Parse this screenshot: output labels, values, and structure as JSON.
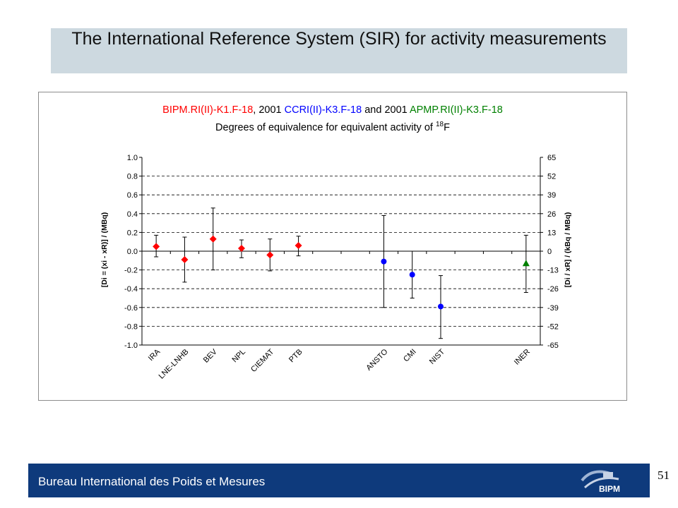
{
  "slide": {
    "title": "The International Reference System (SIR) for activity measurements",
    "footer": "Bureau International des Poids et Mesures",
    "logo_text": "BIPM",
    "page_number": "51"
  },
  "colors": {
    "bipm": "#ff0000",
    "ccri": "#0000ff",
    "apmp": "#008000",
    "footer_bg": "#0e3a7c",
    "title_bg": "#cdd9e0"
  },
  "chart_data": {
    "type": "scatter",
    "title_parts": [
      {
        "text": "BIPM.RI(II)-K1.F-18",
        "color": "#ff0000"
      },
      {
        "text": ", 2001 ",
        "color": "#000000"
      },
      {
        "text": "CCRI(II)-K3.F-18",
        "color": "#0000ff"
      },
      {
        "text": " and 2001 ",
        "color": "#000000"
      },
      {
        "text": "APMP.RI(II)-K3.F-18",
        "color": "#008000"
      }
    ],
    "subtitle": "Degrees of equivalence for equivalent activity of ",
    "subtitle_sup": "18",
    "subtitle_end": "F",
    "ylabel_left": "[Di = (xi - xR)] / (MBq)",
    "ylabel_right": "[Di / xR] / (kBq / MBq)",
    "ylim": [
      -1.0,
      1.0
    ],
    "yticks": [
      "1.0",
      "0.8",
      "0.6",
      "0.4",
      "0.2",
      "0.0",
      "-0.2",
      "-0.4",
      "-0.6",
      "-0.8",
      "-1.0"
    ],
    "ylim_right": [
      -65,
      65
    ],
    "yticks_right": [
      "65",
      "52",
      "39",
      "26",
      "13",
      "0",
      "-13",
      "-26",
      "-39",
      "-52",
      "-65"
    ],
    "grid": "horizontal dashed",
    "categories": [
      "IRA",
      "LNE-LNHB",
      "BEV",
      "NPL",
      "CIEMAT",
      "PTB",
      "",
      "",
      "ANSTO",
      "CMI",
      "NIST",
      "",
      "",
      "INER"
    ],
    "series": [
      {
        "name": "BIPM.RI(II)-K1.F-18",
        "marker": "diamond",
        "color": "#ff0000",
        "points": [
          {
            "category": "IRA",
            "y": 0.05,
            "err_low": -0.06,
            "err_high": 0.17
          },
          {
            "category": "LNE-LNHB",
            "y": -0.09,
            "err_low": -0.33,
            "err_high": 0.15
          },
          {
            "category": "BEV",
            "y": 0.13,
            "err_low": -0.2,
            "err_high": 0.46
          },
          {
            "category": "NPL",
            "y": 0.03,
            "err_low": -0.07,
            "err_high": 0.12
          },
          {
            "category": "CIEMAT",
            "y": -0.04,
            "err_low": -0.21,
            "err_high": 0.13
          },
          {
            "category": "PTB",
            "y": 0.06,
            "err_low": -0.05,
            "err_high": 0.16
          }
        ]
      },
      {
        "name": "CCRI(II)-K3.F-18",
        "marker": "circle",
        "color": "#0000ff",
        "points": [
          {
            "category": "ANSTO",
            "y": -0.11,
            "err_low": -0.6,
            "err_high": 0.38
          },
          {
            "category": "CMI",
            "y": -0.25,
            "err_low": -0.5,
            "err_high": 0.0
          },
          {
            "category": "NIST",
            "y": -0.59,
            "err_low": -0.93,
            "err_high": -0.26
          }
        ]
      },
      {
        "name": "APMP.RI(II)-K3.F-18",
        "marker": "triangle",
        "color": "#008000",
        "points": [
          {
            "category": "INER",
            "y": -0.13,
            "err_low": -0.44,
            "err_high": 0.17
          }
        ]
      }
    ]
  }
}
